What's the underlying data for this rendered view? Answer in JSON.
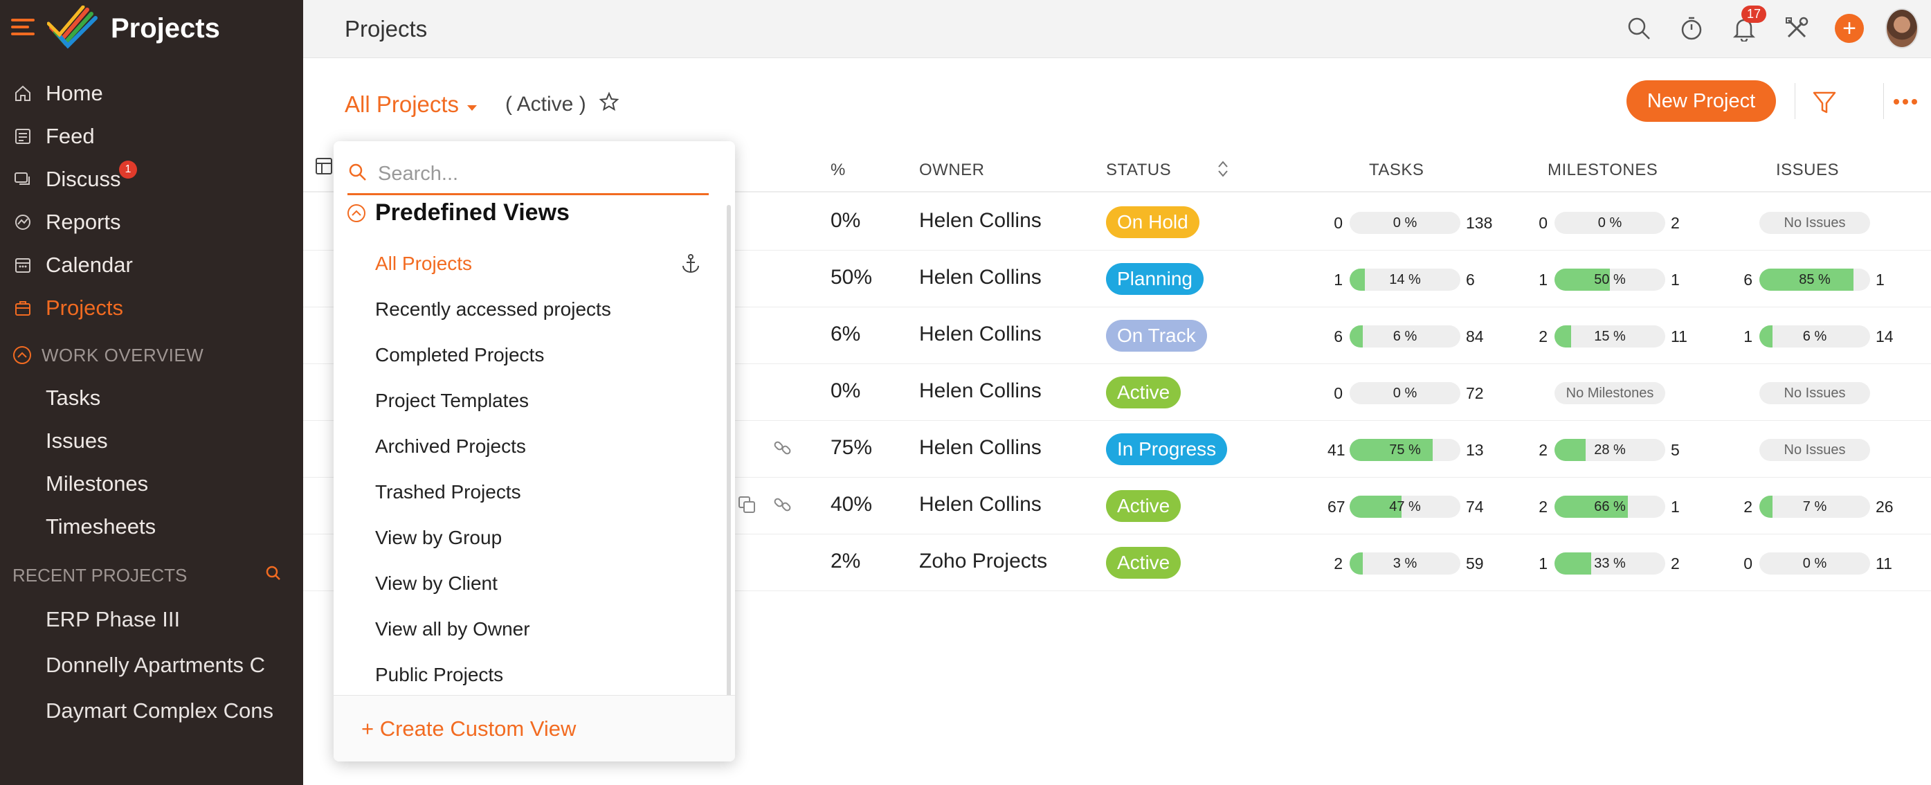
{
  "sidebar": {
    "title": "Projects",
    "nav": [
      {
        "label": "Home",
        "icon": "home-icon"
      },
      {
        "label": "Feed",
        "icon": "feed-icon"
      },
      {
        "label": "Discuss",
        "icon": "discuss-icon",
        "badge": "1"
      },
      {
        "label": "Reports",
        "icon": "reports-icon"
      },
      {
        "label": "Calendar",
        "icon": "calendar-icon"
      },
      {
        "label": "Projects",
        "icon": "projects-icon"
      }
    ],
    "work_overview": {
      "heading": "WORK OVERVIEW",
      "items": [
        "Tasks",
        "Issues",
        "Milestones",
        "Timesheets"
      ]
    },
    "recent": {
      "heading": "RECENT PROJECTS",
      "items": [
        "ERP Phase III",
        "Donnelly Apartments C",
        "Daymart Complex Cons"
      ]
    }
  },
  "topbar": {
    "title": "Projects",
    "notification_count": "17"
  },
  "toolbar": {
    "view_label": "All Projects",
    "active_label": "( Active )",
    "new_project_label": "New Project"
  },
  "table": {
    "headers": {
      "pct": "%",
      "owner": "OWNER",
      "status": "STATUS",
      "tasks": "TASKS",
      "milestones": "MILESTONES",
      "issues": "ISSUES"
    },
    "rows": [
      {
        "pct": "0%",
        "owner": "Helen Collins",
        "status": "On Hold",
        "status_color": "#f7b824",
        "tasks": {
          "l": "0",
          "p": "0 %",
          "f": 0,
          "r": "138"
        },
        "milestones": {
          "l": "0",
          "p": "0 %",
          "f": 0,
          "r": "2"
        },
        "issues": {
          "none": "No Issues"
        }
      },
      {
        "pct": "50%",
        "owner": "Helen Collins",
        "status": "Planning",
        "status_color": "#1ea7e0",
        "tasks": {
          "l": "1",
          "p": "14 %",
          "f": 14,
          "r": "6"
        },
        "milestones": {
          "l": "1",
          "p": "50 %",
          "f": 50,
          "r": "1"
        },
        "issues": {
          "l": "6",
          "p": "85 %",
          "f": 85,
          "r": "1"
        }
      },
      {
        "pct": "6%",
        "owner": "Helen Collins",
        "status": "On Track",
        "status_color": "#a3b7e3",
        "tasks": {
          "l": "6",
          "p": "6 %",
          "f": 6,
          "r": "84"
        },
        "milestones": {
          "l": "2",
          "p": "15 %",
          "f": 15,
          "r": "11"
        },
        "issues": {
          "l": "1",
          "p": "6 %",
          "f": 6,
          "r": "14"
        }
      },
      {
        "pct": "0%",
        "owner": "Helen Collins",
        "status": "Active",
        "status_color": "#8cc63f",
        "tasks": {
          "l": "0",
          "p": "0 %",
          "f": 0,
          "r": "72"
        },
        "milestones": {
          "none": "No Milestones"
        },
        "issues": {
          "none": "No Issues"
        }
      },
      {
        "pct": "75%",
        "owner": "Helen Collins",
        "status": "In Progress",
        "status_color": "#1ea7e0",
        "tasks": {
          "l": "41",
          "p": "75 %",
          "f": 75,
          "r": "13"
        },
        "milestones": {
          "l": "2",
          "p": "28 %",
          "f": 28,
          "r": "5"
        },
        "issues": {
          "none": "No Issues"
        }
      },
      {
        "pct": "40%",
        "owner": "Helen Collins",
        "status": "Active",
        "status_color": "#8cc63f",
        "tasks": {
          "l": "67",
          "p": "47 %",
          "f": 47,
          "r": "74"
        },
        "milestones": {
          "l": "2",
          "p": "66 %",
          "f": 66,
          "r": "1"
        },
        "issues": {
          "l": "2",
          "p": "7 %",
          "f": 7,
          "r": "26"
        }
      },
      {
        "pct": "2%",
        "owner": "Zoho Projects",
        "status": "Active",
        "status_color": "#8cc63f",
        "tasks": {
          "l": "2",
          "p": "3 %",
          "f": 3,
          "r": "59"
        },
        "milestones": {
          "l": "1",
          "p": "33 %",
          "f": 33,
          "r": "2"
        },
        "issues": {
          "l": "0",
          "p": "0 %",
          "f": 0,
          "r": "11"
        }
      }
    ]
  },
  "dropdown": {
    "search_placeholder": "Search...",
    "section": "Predefined Views",
    "items": [
      "All Projects",
      "Recently accessed projects",
      "Completed Projects",
      "Project Templates",
      "Archived Projects",
      "Trashed Projects",
      "View by Group",
      "View by Client",
      "View all by Owner",
      "Public Projects"
    ],
    "create_label": "+ Create Custom View"
  },
  "colors": {
    "accent": "#f26b21",
    "sidebar_bg": "#2e2624",
    "progress_fill": "#7ed17c"
  }
}
